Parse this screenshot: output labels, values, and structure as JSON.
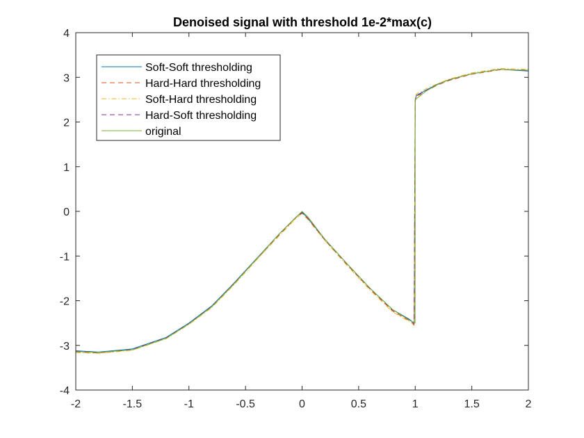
{
  "chart_data": {
    "type": "line",
    "title": "Denoised signal with threshold 1e-2*max(c)",
    "xlabel": "",
    "ylabel": "",
    "xlim": [
      -2,
      2
    ],
    "ylim": [
      -4,
      4
    ],
    "xticks": [
      -2,
      -1.5,
      -1,
      -0.5,
      0,
      0.5,
      1,
      1.5,
      2
    ],
    "xtick_labels": [
      "-2",
      "-1.5",
      "-1",
      "-0.5",
      "0",
      "0.5",
      "1",
      "1.5",
      "2"
    ],
    "yticks": [
      -4,
      -3,
      -2,
      -1,
      0,
      1,
      2,
      3,
      4
    ],
    "ytick_labels": [
      "-4",
      "-3",
      "-2",
      "-1",
      "0",
      "1",
      "2",
      "3",
      "4"
    ],
    "grid": false,
    "legend_position": "top-left",
    "series": [
      {
        "name": "Soft-Soft thresholding",
        "color": "#0072BD",
        "dash": "solid",
        "x": [
          -2,
          -1.8,
          -1.5,
          -1.2,
          -1,
          -0.8,
          -0.6,
          -0.4,
          -0.2,
          -0.05,
          0,
          0.05,
          0.2,
          0.4,
          0.6,
          0.8,
          0.95,
          0.99,
          1.0,
          1.01,
          1.05,
          1.1,
          1.2,
          1.3,
          1.5,
          1.75,
          2
        ],
        "y": [
          -3.12,
          -3.15,
          -3.08,
          -2.82,
          -2.5,
          -2.12,
          -1.6,
          -1.05,
          -0.5,
          -0.12,
          -0.02,
          -0.15,
          -0.62,
          -1.18,
          -1.72,
          -2.2,
          -2.42,
          -2.5,
          2.5,
          2.6,
          2.65,
          2.72,
          2.85,
          2.95,
          3.08,
          3.18,
          3.14
        ]
      },
      {
        "name": "Hard-Hard thresholding",
        "color": "#D95319",
        "dash": "dashed",
        "x": [
          -2,
          -1.8,
          -1.5,
          -1.2,
          -1,
          -0.8,
          -0.6,
          -0.4,
          -0.2,
          -0.05,
          0,
          0.05,
          0.2,
          0.4,
          0.6,
          0.8,
          0.95,
          0.99,
          1.0,
          1.01,
          1.05,
          1.1,
          1.2,
          1.3,
          1.5,
          1.75,
          2
        ],
        "y": [
          -3.15,
          -3.17,
          -3.1,
          -2.84,
          -2.52,
          -2.14,
          -1.62,
          -1.07,
          -0.52,
          -0.13,
          -0.04,
          -0.16,
          -0.64,
          -1.2,
          -1.74,
          -2.23,
          -2.45,
          -2.55,
          2.45,
          2.58,
          2.62,
          2.7,
          2.83,
          2.93,
          3.07,
          3.17,
          3.16
        ]
      },
      {
        "name": "Soft-Hard thresholding",
        "color": "#EDB120",
        "dash": "dashdot",
        "x": [
          -2,
          -1.8,
          -1.5,
          -1.2,
          -1,
          -0.8,
          -0.6,
          -0.4,
          -0.2,
          -0.05,
          0,
          0.05,
          0.2,
          0.4,
          0.6,
          0.8,
          0.95,
          0.99,
          1.0,
          1.01,
          1.05,
          1.1,
          1.2,
          1.3,
          1.5,
          1.75,
          2
        ],
        "y": [
          -3.16,
          -3.18,
          -3.11,
          -2.85,
          -2.53,
          -2.16,
          -1.64,
          -1.08,
          -0.54,
          -0.15,
          -0.05,
          -0.18,
          -0.65,
          -1.22,
          -1.76,
          -2.25,
          -2.47,
          -2.53,
          2.55,
          2.63,
          2.68,
          2.75,
          2.86,
          2.96,
          3.1,
          3.2,
          3.18
        ]
      },
      {
        "name": "Hard-Soft thresholding",
        "color": "#7E2F8E",
        "dash": "dashed",
        "x": [
          -2,
          -1.8,
          -1.5,
          -1.2,
          -1,
          -0.8,
          -0.6,
          -0.4,
          -0.2,
          -0.05,
          0,
          0.05,
          0.2,
          0.4,
          0.6,
          0.8,
          0.95,
          0.99,
          1.0,
          1.01,
          1.05,
          1.1,
          1.2,
          1.3,
          1.5,
          1.75,
          2
        ],
        "y": [
          -3.13,
          -3.16,
          -3.09,
          -2.83,
          -2.51,
          -2.13,
          -1.61,
          -1.06,
          -0.51,
          -0.12,
          -0.03,
          -0.15,
          -0.63,
          -1.19,
          -1.73,
          -2.21,
          -2.43,
          -2.52,
          2.48,
          2.59,
          2.64,
          2.71,
          2.84,
          2.94,
          3.08,
          3.18,
          3.15
        ]
      },
      {
        "name": "original",
        "color": "#77AC30",
        "dash": "solid",
        "x": [
          -2,
          -1.8,
          -1.5,
          -1.2,
          -1,
          -0.8,
          -0.6,
          -0.4,
          -0.2,
          -0.05,
          0,
          0.05,
          0.2,
          0.4,
          0.6,
          0.8,
          0.95,
          0.999,
          1.0,
          1.05,
          1.1,
          1.2,
          1.3,
          1.5,
          1.75,
          2
        ],
        "y": [
          -3.14,
          -3.16,
          -3.1,
          -2.84,
          -2.52,
          -2.14,
          -1.62,
          -1.06,
          -0.5,
          -0.12,
          0.0,
          -0.12,
          -0.62,
          -1.18,
          -1.72,
          -2.2,
          -2.44,
          -2.5,
          2.5,
          2.6,
          2.7,
          2.84,
          2.95,
          3.08,
          3.18,
          3.16
        ]
      }
    ]
  }
}
